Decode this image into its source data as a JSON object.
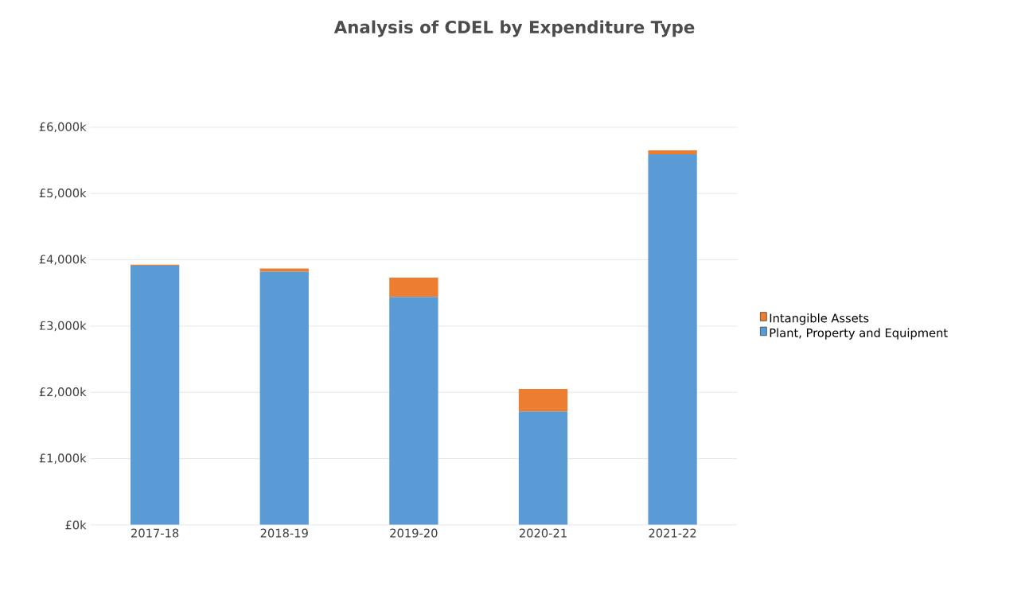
{
  "chart_data": {
    "type": "bar",
    "title": "Analysis of CDEL by Expenditure Type",
    "categories": [
      "2017-18",
      "2018-19",
      "2019-20",
      "2020-21",
      "2021-22"
    ],
    "stacked": true,
    "series": [
      {
        "name": "Plant, Property and Equipment",
        "color": "#5b9bd5",
        "values": [
          3910,
          3820,
          3440,
          1710,
          5590
        ]
      },
      {
        "name": "Intangible Assets",
        "color": "#ed7d31",
        "values": [
          15,
          50,
          290,
          340,
          60
        ]
      }
    ],
    "ylim": [
      0,
      6000
    ],
    "yticks": [
      {
        "value": 0,
        "label": "£0k"
      },
      {
        "value": 1000,
        "label": "£1,000k"
      },
      {
        "value": 2000,
        "label": "£2,000k"
      },
      {
        "value": 3000,
        "label": "£3,000k"
      },
      {
        "value": 4000,
        "label": "£4,000k"
      },
      {
        "value": 5000,
        "label": "£5,000k"
      },
      {
        "value": 6000,
        "label": "£6,000k"
      }
    ],
    "grid": "y",
    "legend": "right"
  }
}
